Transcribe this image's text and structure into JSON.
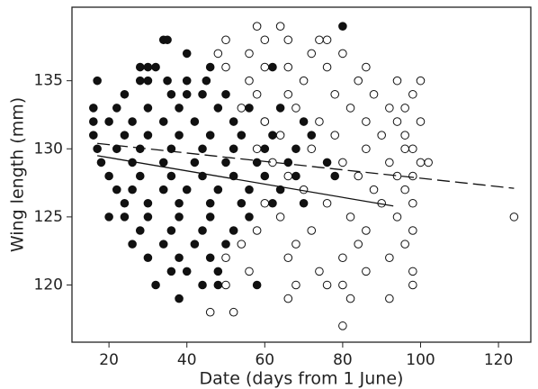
{
  "chart_data": {
    "type": "scatter",
    "xlabel": "Date (days from 1 June)",
    "ylabel": "Wing length (mm)",
    "xlim": [
      10.5,
      128.3
    ],
    "ylim": [
      115.8,
      140.4
    ],
    "xticks": [
      20,
      40,
      60,
      80,
      100,
      120
    ],
    "yticks": [
      120,
      125,
      130,
      135
    ],
    "grid": false,
    "series": [
      {
        "color": "#111111",
        "marker": "filled",
        "x": [
          17,
          28,
          30,
          35,
          40,
          45,
          80,
          34,
          35,
          40,
          28,
          30,
          32,
          46,
          62,
          24,
          36,
          40,
          44,
          50,
          16,
          22,
          30,
          38,
          48,
          56,
          64,
          16,
          20,
          26,
          34,
          42,
          52,
          60,
          70,
          16,
          24,
          30,
          38,
          46,
          54,
          62,
          72,
          17,
          22,
          28,
          36,
          44,
          52,
          60,
          68,
          18,
          26,
          34,
          42,
          50,
          58,
          66,
          76,
          20,
          28,
          36,
          44,
          52,
          60,
          68,
          78,
          22,
          26,
          34,
          40,
          48,
          56,
          64,
          24,
          30,
          38,
          46,
          54,
          62,
          70,
          20,
          24,
          30,
          38,
          46,
          56,
          28,
          36,
          44,
          52,
          26,
          34,
          42,
          50,
          30,
          38,
          46,
          36,
          40,
          48,
          32,
          44,
          48,
          58,
          38
        ],
        "y": [
          135,
          135,
          135,
          135,
          135,
          135,
          139,
          138,
          138,
          137,
          136,
          136,
          136,
          136,
          136,
          134,
          134,
          134,
          134,
          134,
          133,
          133,
          133,
          133,
          133,
          133,
          133,
          132,
          132,
          132,
          132,
          132,
          132,
          132,
          132,
          131,
          131,
          131,
          131,
          131,
          131,
          131,
          131,
          130,
          130,
          130,
          130,
          130,
          130,
          130,
          130,
          129,
          129,
          129,
          129,
          129,
          129,
          129,
          129,
          128,
          128,
          128,
          128,
          128,
          128,
          128,
          128,
          127,
          127,
          127,
          127,
          127,
          127,
          127,
          126,
          126,
          126,
          126,
          126,
          126,
          126,
          125,
          125,
          125,
          125,
          125,
          125,
          124,
          124,
          124,
          124,
          123,
          123,
          123,
          123,
          122,
          122,
          122,
          121,
          121,
          121,
          120,
          120,
          120,
          120,
          119
        ]
      },
      {
        "color": "#111111",
        "marker": "open",
        "x": [
          58,
          64,
          50,
          60,
          66,
          74,
          76,
          48,
          56,
          72,
          80,
          50,
          60,
          66,
          76,
          86,
          56,
          70,
          84,
          94,
          100,
          58,
          66,
          78,
          88,
          98,
          54,
          68,
          82,
          92,
          96,
          60,
          74,
          86,
          94,
          100,
          64,
          78,
          90,
          96,
          58,
          72,
          86,
          96,
          98,
          62,
          80,
          92,
          100,
          102,
          66,
          84,
          94,
          98,
          70,
          88,
          96,
          60,
          76,
          90,
          98,
          64,
          82,
          94,
          124,
          58,
          72,
          86,
          98,
          54,
          68,
          84,
          96,
          50,
          66,
          80,
          92,
          56,
          74,
          86,
          98,
          50,
          68,
          76,
          80,
          98,
          66,
          82,
          92,
          46,
          52,
          80
        ],
        "y": [
          139,
          139,
          138,
          138,
          138,
          138,
          138,
          137,
          137,
          137,
          137,
          136,
          136,
          136,
          136,
          136,
          135,
          135,
          135,
          135,
          135,
          134,
          134,
          134,
          134,
          134,
          133,
          133,
          133,
          133,
          133,
          132,
          132,
          132,
          132,
          132,
          131,
          131,
          131,
          131,
          130,
          130,
          130,
          130,
          130,
          129,
          129,
          129,
          129,
          129,
          128,
          128,
          128,
          128,
          127,
          127,
          127,
          126,
          126,
          126,
          126,
          125,
          125,
          125,
          125,
          124,
          124,
          124,
          124,
          123,
          123,
          123,
          123,
          122,
          122,
          122,
          122,
          121,
          121,
          121,
          121,
          120,
          120,
          120,
          120,
          120,
          119,
          119,
          119,
          118,
          118,
          117
        ]
      }
    ],
    "lines": [
      {
        "style": "solid",
        "x": [
          17,
          93
        ],
        "y": [
          129.5,
          125.8
        ]
      },
      {
        "style": "dashed",
        "x": [
          17,
          124
        ],
        "y": [
          130.4,
          127.1
        ]
      }
    ]
  }
}
